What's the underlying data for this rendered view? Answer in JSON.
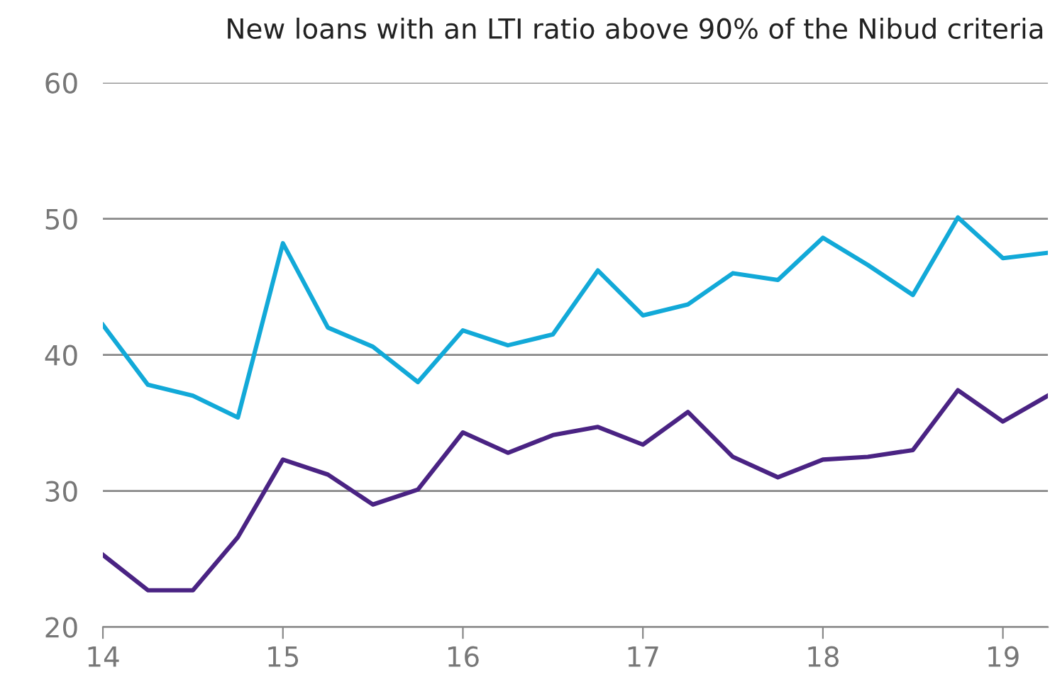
{
  "chart_data": {
    "type": "line",
    "title": "New loans with an LTI ratio above 90% of the Nibud criteria",
    "x": [
      14,
      14.25,
      14.5,
      14.75,
      15,
      15.25,
      15.5,
      15.75,
      16,
      16.25,
      16.5,
      16.75,
      17,
      17.25,
      17.5,
      17.75,
      18,
      18.25,
      18.5,
      18.75,
      19,
      19.25
    ],
    "series": [
      {
        "color": "#12a9d8",
        "values": [
          42.2,
          37.8,
          37.0,
          35.4,
          48.2,
          42.0,
          40.6,
          38.0,
          41.8,
          40.7,
          41.5,
          46.2,
          42.9,
          43.7,
          46.0,
          45.5,
          48.6,
          46.6,
          44.4,
          50.1,
          47.1,
          47.5
        ]
      },
      {
        "color": "#4a2383",
        "values": [
          25.3,
          22.7,
          22.7,
          26.6,
          32.3,
          31.2,
          29.0,
          30.1,
          34.3,
          32.8,
          34.1,
          34.7,
          33.4,
          35.8,
          32.5,
          31.0,
          32.3,
          32.5,
          33.0,
          37.4,
          35.1,
          37.0
        ]
      }
    ],
    "xlim": [
      14,
      19.25
    ],
    "xticks": [
      14,
      15,
      16,
      17,
      18,
      19
    ],
    "ylim": [
      20,
      60
    ],
    "yticks": [
      20,
      30,
      40,
      50,
      60
    ],
    "grid": "y",
    "marker": "none",
    "line_style": "solid"
  }
}
